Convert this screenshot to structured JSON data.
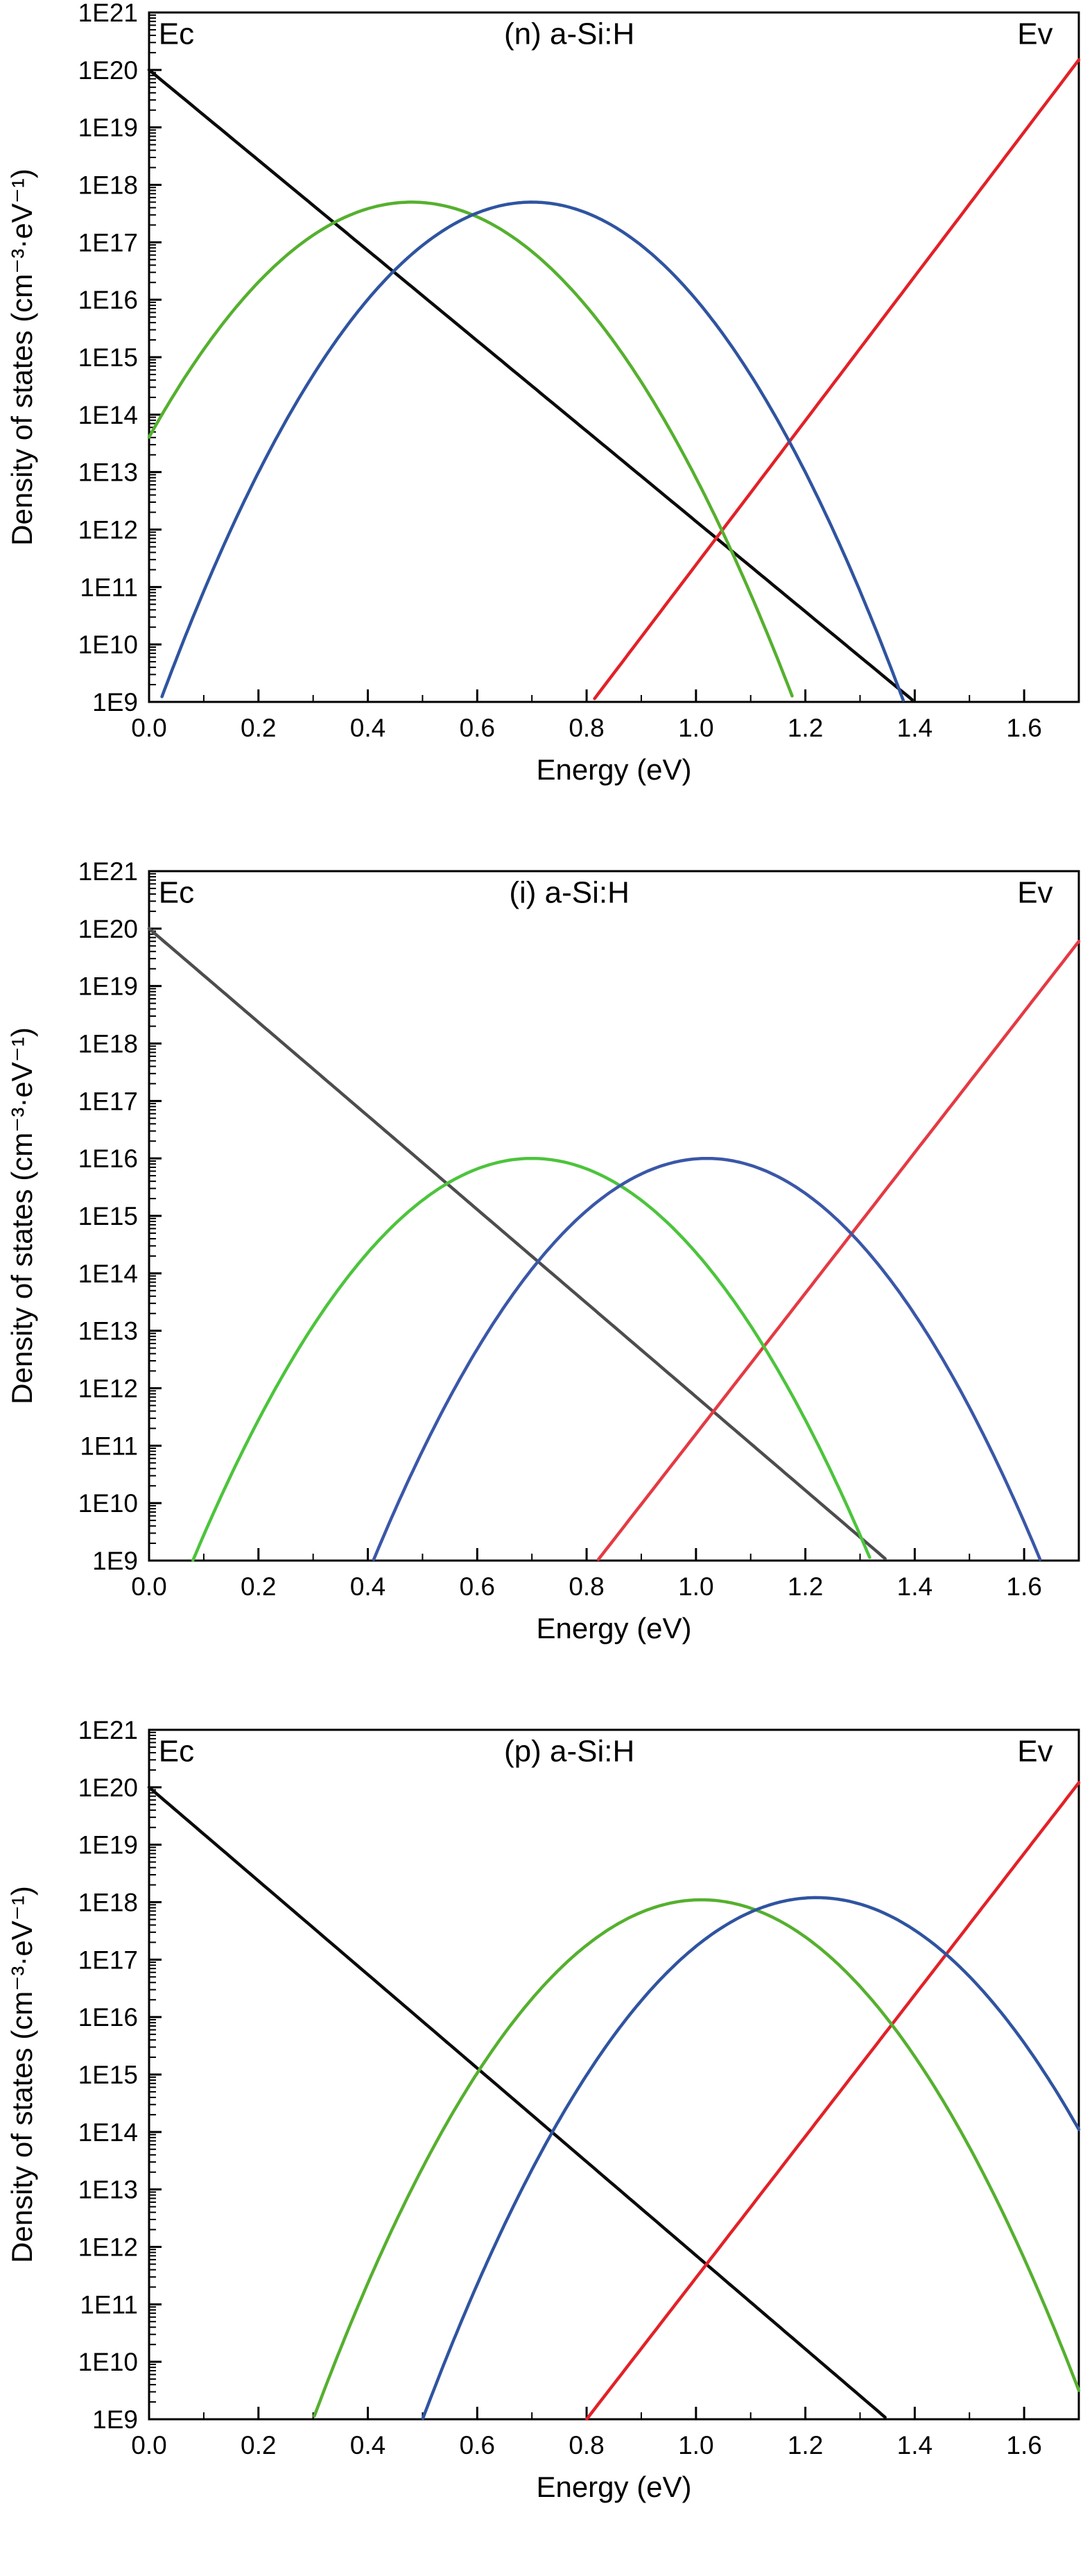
{
  "figure": {
    "background": "#ffffff",
    "description_labels": {
      "conduction_band_edge": "Ec",
      "valence_band_edge": "Ev"
    }
  },
  "chart_data": [
    {
      "type": "line",
      "title": "(n) a-Si:H",
      "xlabel": "Energy (eV)",
      "ylabel": "Density of states (cm⁻³·eV⁻¹)",
      "xlim": [
        0.0,
        1.7
      ],
      "xticks": [
        0.0,
        0.2,
        0.4,
        0.6,
        0.8,
        1.0,
        1.2,
        1.4,
        1.6
      ],
      "xtick_labels": [
        "0.0",
        "0.2",
        "0.4",
        "0.6",
        "0.8",
        "1.0",
        "1.2",
        "1.4",
        "1.6"
      ],
      "yscale": "log",
      "ylim_exp": [
        9,
        21
      ],
      "ytick_labels": [
        "1E9",
        "1E10",
        "1E11",
        "1E12",
        "1E13",
        "1E14",
        "1E15",
        "1E16",
        "1E17",
        "1E18",
        "1E19",
        "1E20",
        "1E21"
      ],
      "grid": false,
      "legend": "none",
      "annotations": [
        {
          "name": "conduction-band-edge-label",
          "text": "Ec",
          "x": 0.05,
          "y_exp": 20.45
        },
        {
          "name": "valence-band-edge-label",
          "text": "Ev",
          "x": 1.62,
          "y_exp": 20.45
        }
      ],
      "series": [
        {
          "name": "conduction-band-tail",
          "color": "#0a0a0a",
          "shape": "loglinear",
          "points": [
            {
              "x": 0.0,
              "y": "1E20"
            },
            {
              "x": 1.4,
              "y": "1E9"
            }
          ]
        },
        {
          "name": "valence-band-tail",
          "color": "#e22128",
          "shape": "loglinear",
          "points": [
            {
              "x": 0.81,
              "y": "1E9"
            },
            {
              "x": 1.7,
              "y": "1.5E20"
            }
          ]
        },
        {
          "name": "gaussian-states-green",
          "color": "#55b02e",
          "shape": "log-gaussian",
          "peak": {
            "x": 0.48,
            "y": "5E17"
          },
          "crossings_at_1E9": [
            -0.22,
            1.18
          ]
        },
        {
          "name": "gaussian-states-blue",
          "color": "#2f54a0",
          "shape": "log-gaussian",
          "peak": {
            "x": 0.7,
            "y": "5E17"
          },
          "crossings_at_1E9": [
            0.02,
            1.38
          ]
        }
      ]
    },
    {
      "type": "line",
      "title": "(i) a-Si:H",
      "xlabel": "Energy (eV)",
      "ylabel": "Density of states (cm⁻³·eV⁻¹)",
      "xlim": [
        0.0,
        1.7
      ],
      "xticks": [
        0.0,
        0.2,
        0.4,
        0.6,
        0.8,
        1.0,
        1.2,
        1.4,
        1.6
      ],
      "xtick_labels": [
        "0.0",
        "0.2",
        "0.4",
        "0.6",
        "0.8",
        "1.0",
        "1.2",
        "1.4",
        "1.6"
      ],
      "yscale": "log",
      "ylim_exp": [
        9,
        21
      ],
      "ytick_labels": [
        "1E9",
        "1E10",
        "1E11",
        "1E12",
        "1E13",
        "1E14",
        "1E15",
        "1E16",
        "1E17",
        "1E18",
        "1E19",
        "1E20",
        "1E21"
      ],
      "grid": false,
      "legend": "none",
      "annotations": [
        {
          "name": "conduction-band-edge-label",
          "text": "Ec",
          "x": 0.05,
          "y_exp": 20.45
        },
        {
          "name": "valence-band-edge-label",
          "text": "Ev",
          "x": 1.62,
          "y_exp": 20.45
        }
      ],
      "series": [
        {
          "name": "conduction-band-tail",
          "color": "#4d4d4d",
          "shape": "loglinear",
          "points": [
            {
              "x": 0.0,
              "y": "1E20"
            },
            {
              "x": 1.35,
              "y": "1E9"
            }
          ]
        },
        {
          "name": "valence-band-tail",
          "color": "#e43a44",
          "shape": "loglinear",
          "points": [
            {
              "x": 0.82,
              "y": "1E9"
            },
            {
              "x": 1.7,
              "y": "6E19"
            }
          ]
        },
        {
          "name": "gaussian-states-green",
          "color": "#4cc43c",
          "shape": "log-gaussian",
          "peak": {
            "x": 0.7,
            "y": "1E16"
          },
          "crossings_at_1E9": [
            0.08,
            1.32
          ]
        },
        {
          "name": "gaussian-states-blue",
          "color": "#3a57a8",
          "shape": "log-gaussian",
          "peak": {
            "x": 1.02,
            "y": "1E16"
          },
          "crossings_at_1E9": [
            0.41,
            1.63
          ]
        }
      ]
    },
    {
      "type": "line",
      "title": "(p) a-Si:H",
      "xlabel": "Energy (eV)",
      "ylabel": "Density of states (cm⁻³·eV⁻¹)",
      "xlim": [
        0.0,
        1.7
      ],
      "xticks": [
        0.0,
        0.2,
        0.4,
        0.6,
        0.8,
        1.0,
        1.2,
        1.4,
        1.6
      ],
      "xtick_labels": [
        "0.0",
        "0.2",
        "0.4",
        "0.6",
        "0.8",
        "1.0",
        "1.2",
        "1.4",
        "1.6"
      ],
      "yscale": "log",
      "ylim_exp": [
        9,
        21
      ],
      "ytick_labels": [
        "1E9",
        "1E10",
        "1E11",
        "1E12",
        "1E13",
        "1E14",
        "1E15",
        "1E16",
        "1E17",
        "1E18",
        "1E19",
        "1E20",
        "1E21"
      ],
      "grid": false,
      "legend": "none",
      "annotations": [
        {
          "name": "conduction-band-edge-label",
          "text": "Ec",
          "x": 0.05,
          "y_exp": 20.45
        },
        {
          "name": "valence-band-edge-label",
          "text": "Ev",
          "x": 1.62,
          "y_exp": 20.45
        }
      ],
      "series": [
        {
          "name": "conduction-band-tail",
          "color": "#0a0a0a",
          "shape": "loglinear",
          "points": [
            {
              "x": 0.0,
              "y": "1E20"
            },
            {
              "x": 1.35,
              "y": "1E9"
            }
          ]
        },
        {
          "name": "valence-band-tail",
          "color": "#e22128",
          "shape": "loglinear",
          "points": [
            {
              "x": 0.8,
              "y": "1E9"
            },
            {
              "x": 1.7,
              "y": "1.2E20"
            }
          ]
        },
        {
          "name": "gaussian-states-green",
          "color": "#55b02e",
          "shape": "log-gaussian",
          "peak": {
            "x": 1.01,
            "y": "1.1E18"
          },
          "crossings_at_1E9": [
            0.3,
            1.72
          ]
        },
        {
          "name": "gaussian-states-blue",
          "color": "#2f54a0",
          "shape": "log-gaussian",
          "peak": {
            "x": 1.22,
            "y": "1.2E18"
          },
          "crossings_at_1E9": [
            0.5,
            1.94
          ]
        }
      ]
    }
  ]
}
